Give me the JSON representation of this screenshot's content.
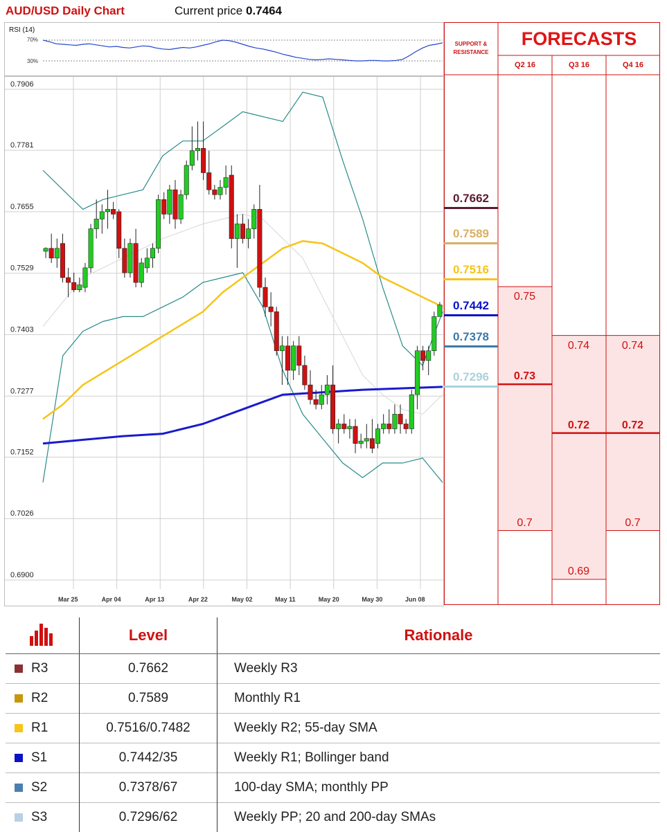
{
  "header": {
    "title": "AUD/USD Daily Chart",
    "price_label": "Current price",
    "price_value": "0.7464"
  },
  "rsi": {
    "title": "RSI (14)",
    "levels": [
      "70%",
      "30%"
    ],
    "values": [
      70,
      67,
      63,
      62,
      61,
      60,
      62,
      63,
      61,
      59,
      57,
      58,
      56,
      55,
      57,
      59,
      58,
      55,
      53,
      52,
      54,
      56,
      55,
      57,
      60,
      63,
      67,
      70,
      69,
      66,
      62,
      58,
      55,
      53,
      50,
      47,
      43,
      40,
      37,
      35,
      33,
      32,
      33,
      34,
      33,
      32,
      31,
      30,
      30,
      31,
      31,
      30,
      30,
      31,
      33,
      40,
      48,
      55,
      60,
      62,
      65
    ]
  },
  "chart_data": {
    "type": "candlestick",
    "title": "AUD/USD Daily Chart",
    "y_ticks": [
      "0.7906",
      "0.7781",
      "0.7655",
      "0.7529",
      "0.7403",
      "0.7277",
      "0.7152",
      "0.7026",
      "0.6900"
    ],
    "ylim": [
      0.69,
      0.7906
    ],
    "x_ticks": [
      "Mar 25",
      "Apr 04",
      "Apr 13",
      "Apr 22",
      "May 02",
      "May 11",
      "May 20",
      "May 30",
      "Jun 08"
    ],
    "candles": [
      [
        0.7574,
        0.7582,
        0.756,
        0.758
      ],
      [
        0.758,
        0.761,
        0.755,
        0.756
      ],
      [
        0.756,
        0.76,
        0.754,
        0.758
      ],
      [
        0.759,
        0.761,
        0.751,
        0.752
      ],
      [
        0.752,
        0.754,
        0.748,
        0.751
      ],
      [
        0.751,
        0.753,
        0.749,
        0.7495
      ],
      [
        0.7495,
        0.752,
        0.749,
        0.7505
      ],
      [
        0.75,
        0.755,
        0.749,
        0.754
      ],
      [
        0.754,
        0.763,
        0.753,
        0.762
      ],
      [
        0.762,
        0.768,
        0.76,
        0.764
      ],
      [
        0.764,
        0.767,
        0.761,
        0.7655
      ],
      [
        0.7655,
        0.77,
        0.762,
        0.766
      ],
      [
        0.766,
        0.7675,
        0.764,
        0.765
      ],
      [
        0.7655,
        0.766,
        0.756,
        0.758
      ],
      [
        0.758,
        0.76,
        0.752,
        0.753
      ],
      [
        0.753,
        0.76,
        0.752,
        0.759
      ],
      [
        0.759,
        0.762,
        0.75,
        0.751
      ],
      [
        0.751,
        0.756,
        0.75,
        0.755
      ],
      [
        0.754,
        0.758,
        0.753,
        0.756
      ],
      [
        0.756,
        0.759,
        0.754,
        0.758
      ],
      [
        0.758,
        0.769,
        0.757,
        0.768
      ],
      [
        0.768,
        0.7695,
        0.764,
        0.765
      ],
      [
        0.765,
        0.771,
        0.763,
        0.77
      ],
      [
        0.77,
        0.772,
        0.762,
        0.764
      ],
      [
        0.764,
        0.77,
        0.763,
        0.769
      ],
      [
        0.769,
        0.776,
        0.768,
        0.775
      ],
      [
        0.775,
        0.783,
        0.774,
        0.778
      ],
      [
        0.778,
        0.784,
        0.776,
        0.7785
      ],
      [
        0.7785,
        0.784,
        0.772,
        0.7735
      ],
      [
        0.7735,
        0.778,
        0.769,
        0.77
      ],
      [
        0.77,
        0.771,
        0.768,
        0.769
      ],
      [
        0.769,
        0.772,
        0.768,
        0.7705
      ],
      [
        0.7705,
        0.775,
        0.769,
        0.7725
      ],
      [
        0.773,
        0.775,
        0.758,
        0.76
      ],
      [
        0.76,
        0.765,
        0.754,
        0.763
      ],
      [
        0.763,
        0.765,
        0.759,
        0.76
      ],
      [
        0.76,
        0.764,
        0.758,
        0.762
      ],
      [
        0.762,
        0.767,
        0.76,
        0.766
      ],
      [
        0.766,
        0.771,
        0.748,
        0.75
      ],
      [
        0.75,
        0.752,
        0.744,
        0.746
      ],
      [
        0.746,
        0.749,
        0.742,
        0.745
      ],
      [
        0.745,
        0.746,
        0.736,
        0.737
      ],
      [
        0.737,
        0.74,
        0.73,
        0.738
      ],
      [
        0.738,
        0.74,
        0.73,
        0.733
      ],
      [
        0.733,
        0.739,
        0.731,
        0.738
      ],
      [
        0.738,
        0.74,
        0.732,
        0.734
      ],
      [
        0.734,
        0.736,
        0.729,
        0.73
      ],
      [
        0.73,
        0.733,
        0.726,
        0.727
      ],
      [
        0.727,
        0.729,
        0.725,
        0.726
      ],
      [
        0.726,
        0.73,
        0.725,
        0.728
      ],
      [
        0.728,
        0.732,
        0.726,
        0.73
      ],
      [
        0.73,
        0.734,
        0.72,
        0.721
      ],
      [
        0.721,
        0.723,
        0.718,
        0.722
      ],
      [
        0.722,
        0.724,
        0.72,
        0.721
      ],
      [
        0.721,
        0.723,
        0.719,
        0.7215
      ],
      [
        0.7215,
        0.723,
        0.716,
        0.718
      ],
      [
        0.718,
        0.72,
        0.717,
        0.7185
      ],
      [
        0.7185,
        0.722,
        0.717,
        0.719
      ],
      [
        0.719,
        0.723,
        0.716,
        0.717
      ],
      [
        0.718,
        0.722,
        0.717,
        0.721
      ],
      [
        0.721,
        0.724,
        0.72,
        0.722
      ],
      [
        0.722,
        0.725,
        0.72,
        0.721
      ],
      [
        0.721,
        0.726,
        0.72,
        0.724
      ],
      [
        0.724,
        0.726,
        0.72,
        0.722
      ],
      [
        0.722,
        0.723,
        0.72,
        0.721
      ],
      [
        0.721,
        0.729,
        0.72,
        0.728
      ],
      [
        0.728,
        0.738,
        0.725,
        0.737
      ],
      [
        0.737,
        0.738,
        0.733,
        0.735
      ],
      [
        0.735,
        0.738,
        0.732,
        0.737
      ],
      [
        0.737,
        0.745,
        0.736,
        0.744
      ],
      [
        0.744,
        0.747,
        0.744,
        0.7464
      ]
    ],
    "overlays": {
      "sma_55": [
        [
          0,
          0.723
        ],
        [
          0.05,
          0.726
        ],
        [
          0.1,
          0.73
        ],
        [
          0.2,
          0.735
        ],
        [
          0.3,
          0.74
        ],
        [
          0.4,
          0.745
        ],
        [
          0.45,
          0.749
        ],
        [
          0.5,
          0.752
        ],
        [
          0.55,
          0.755
        ],
        [
          0.6,
          0.758
        ],
        [
          0.65,
          0.7595
        ],
        [
          0.7,
          0.759
        ],
        [
          0.75,
          0.757
        ],
        [
          0.8,
          0.755
        ],
        [
          0.85,
          0.752
        ],
        [
          0.9,
          0.75
        ],
        [
          0.95,
          0.748
        ],
        [
          1.0,
          0.746
        ]
      ],
      "sma_200": [
        [
          0,
          0.718
        ],
        [
          0.2,
          0.7195
        ],
        [
          0.3,
          0.72
        ],
        [
          0.4,
          0.722
        ],
        [
          0.5,
          0.725
        ],
        [
          0.6,
          0.728
        ],
        [
          0.7,
          0.7285
        ],
        [
          0.8,
          0.729
        ],
        [
          0.9,
          0.7293
        ],
        [
          1.0,
          0.7296
        ]
      ],
      "bb_upper": [
        [
          0,
          0.774
        ],
        [
          0.05,
          0.77
        ],
        [
          0.1,
          0.766
        ],
        [
          0.15,
          0.768
        ],
        [
          0.2,
          0.769
        ],
        [
          0.25,
          0.77
        ],
        [
          0.3,
          0.777
        ],
        [
          0.35,
          0.78
        ],
        [
          0.4,
          0.78
        ],
        [
          0.45,
          0.783
        ],
        [
          0.5,
          0.786
        ],
        [
          0.55,
          0.785
        ],
        [
          0.6,
          0.784
        ],
        [
          0.65,
          0.79
        ],
        [
          0.7,
          0.789
        ],
        [
          0.75,
          0.776
        ],
        [
          0.8,
          0.764
        ],
        [
          0.85,
          0.75
        ],
        [
          0.9,
          0.738
        ],
        [
          0.95,
          0.734
        ],
        [
          1.0,
          0.745
        ]
      ],
      "bb_lower": [
        [
          0,
          0.71
        ],
        [
          0.05,
          0.736
        ],
        [
          0.1,
          0.741
        ],
        [
          0.15,
          0.743
        ],
        [
          0.2,
          0.744
        ],
        [
          0.25,
          0.744
        ],
        [
          0.3,
          0.746
        ],
        [
          0.35,
          0.748
        ],
        [
          0.4,
          0.751
        ],
        [
          0.45,
          0.752
        ],
        [
          0.5,
          0.753
        ],
        [
          0.55,
          0.746
        ],
        [
          0.6,
          0.733
        ],
        [
          0.65,
          0.724
        ],
        [
          0.7,
          0.719
        ],
        [
          0.75,
          0.714
        ],
        [
          0.8,
          0.711
        ],
        [
          0.85,
          0.714
        ],
        [
          0.9,
          0.714
        ],
        [
          0.95,
          0.715
        ],
        [
          1.0,
          0.71
        ]
      ],
      "sma_20": [
        [
          0,
          0.742
        ],
        [
          0.05,
          0.747
        ],
        [
          0.1,
          0.752
        ],
        [
          0.2,
          0.756
        ],
        [
          0.3,
          0.76
        ],
        [
          0.4,
          0.763
        ],
        [
          0.5,
          0.765
        ],
        [
          0.55,
          0.764
        ],
        [
          0.6,
          0.76
        ],
        [
          0.65,
          0.756
        ],
        [
          0.7,
          0.748
        ],
        [
          0.75,
          0.74
        ],
        [
          0.8,
          0.732
        ],
        [
          0.85,
          0.728
        ],
        [
          0.9,
          0.725
        ],
        [
          0.95,
          0.724
        ],
        [
          1.0,
          0.728
        ]
      ]
    }
  },
  "support_resistance": {
    "title_line1": "SUPPORT &",
    "title_line2": "RESISTANCE",
    "levels": [
      {
        "value": "0.7662",
        "price": 0.7662,
        "color": "#5c1a33"
      },
      {
        "value": "0.7589",
        "price": 0.7589,
        "color": "#d8b060"
      },
      {
        "value": "0.7516",
        "price": 0.7516,
        "color": "#f5c518"
      },
      {
        "value": "0.7442",
        "price": 0.7442,
        "color": "#0a12c8"
      },
      {
        "value": "0.7378",
        "price": 0.7378,
        "color": "#3c78a8"
      },
      {
        "value": "0.7296",
        "price": 0.7296,
        "color": "#a9d2dc"
      }
    ]
  },
  "forecasts": {
    "title": "FORECASTS",
    "quarters": [
      {
        "label": "Q2 16",
        "high": "0.75",
        "mid": "0.73",
        "low": "0.7",
        "high_p": 0.75,
        "mid_p": 0.73,
        "low_p": 0.7
      },
      {
        "label": "Q3 16",
        "high": "0.74",
        "mid": "0.72",
        "low": "0.69",
        "high_p": 0.74,
        "mid_p": 0.72,
        "low_p": 0.69
      },
      {
        "label": "Q4 16",
        "high": "0.74",
        "mid": "0.72",
        "low": "0.7",
        "high_p": 0.74,
        "mid_p": 0.72,
        "low_p": 0.7
      }
    ]
  },
  "table": {
    "headers": [
      "Level",
      "Rationale"
    ],
    "rows": [
      {
        "code": "R3",
        "level": "0.7662",
        "rationale": "Weekly R3",
        "color": "#8b3030"
      },
      {
        "code": "R2",
        "level": "0.7589",
        "rationale": "Monthly R1",
        "color": "#c8960a"
      },
      {
        "code": "R1",
        "level": "0.7516/0.7482",
        "rationale": "Weekly R2; 55-day SMA",
        "color": "#f5c518"
      },
      {
        "code": "S1",
        "level": "0.7442/35",
        "rationale": "Weekly R1; Bollinger band",
        "color": "#0a12c8"
      },
      {
        "code": "S2",
        "level": "0.7378/67",
        "rationale": "100-day SMA; monthly PP",
        "color": "#4a7fb0"
      },
      {
        "code": "S3",
        "level": "0.7296/62",
        "rationale": "Weekly PP; 20 and 200-day SMAs",
        "color": "#b8d0e6"
      }
    ]
  },
  "colors": {
    "accent": "#d01010",
    "bull": "#22cc22",
    "bear": "#d01010",
    "sma55": "#f5c518",
    "sma200": "#1a1acc",
    "bollinger": "#2a8a8a",
    "sma20": "#dddddd",
    "forecast_fill": "#fde4e4"
  }
}
